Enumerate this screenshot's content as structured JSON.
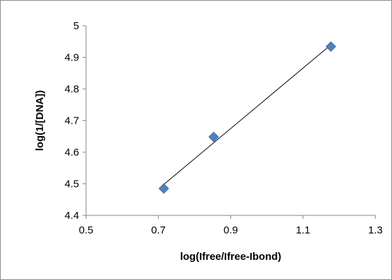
{
  "chart_data": {
    "type": "scatter",
    "title": "",
    "xlabel": "log(Ifree/Ifree-Ibond)",
    "ylabel": "log(1/[DNA])",
    "xlim": [
      0.5,
      1.3
    ],
    "ylim": [
      4.4,
      5.0
    ],
    "x_ticks": [
      "0.5",
      "0.7",
      "0.9",
      "1.1",
      "1.3"
    ],
    "y_ticks": [
      "4.4",
      "4.5",
      "4.6",
      "4.7",
      "4.8",
      "4.9",
      "5"
    ],
    "grid": false,
    "legend": false,
    "marker": "diamond",
    "series": [
      {
        "color": "#4f81bd",
        "points": [
          {
            "x": 0.715,
            "y": 4.485
          },
          {
            "x": 0.853,
            "y": 4.648
          },
          {
            "x": 1.177,
            "y": 4.934
          }
        ]
      }
    ],
    "trendline": {
      "type": "linear",
      "color": "#000000",
      "x_range": [
        0.715,
        1.177
      ]
    }
  }
}
